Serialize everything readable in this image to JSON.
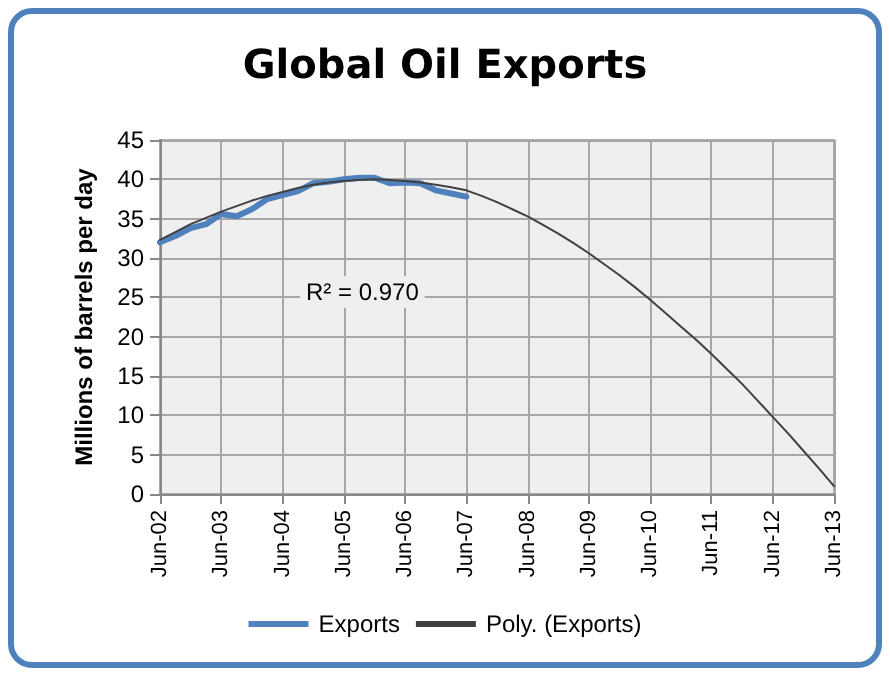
{
  "chart_data": {
    "type": "line",
    "title": "Global Oil Exports",
    "ylabel": "Millions of barrels per day",
    "categories": [
      "Jun-02",
      null,
      null,
      null,
      "Jun-03",
      null,
      null,
      null,
      "Jun-04",
      null,
      null,
      null,
      "Jun-05",
      null,
      null,
      null,
      "Jun-06",
      null,
      null,
      null,
      "Jun-07",
      null,
      null,
      null,
      "Jun-08",
      null,
      null,
      null,
      "Jun-09",
      null,
      null,
      null,
      "Jun-10",
      null,
      null,
      null,
      "Jun-11",
      null,
      null,
      null,
      "Jun-12",
      null,
      null,
      null,
      "Jun-13"
    ],
    "ylim": [
      0,
      45
    ],
    "yticks": [
      0,
      5,
      10,
      15,
      20,
      25,
      30,
      35,
      40,
      45
    ],
    "series": [
      {
        "name": "Exports",
        "color": "#4f81bd",
        "values": [
          32,
          32.8,
          33.8,
          34.3,
          35.6,
          35.3,
          36.2,
          37.5,
          38.0,
          38.5,
          39.5,
          39.7,
          40.0,
          40.2,
          40.2,
          39.5,
          39.6,
          39.5,
          38.6,
          38.2,
          37.8,
          null,
          null,
          null,
          null,
          null,
          null,
          null,
          null,
          null,
          null,
          null,
          null,
          null,
          null,
          null,
          null,
          null,
          null,
          null,
          null,
          null,
          null,
          null,
          null
        ]
      },
      {
        "name": "Poly. (Exports)",
        "color": "#404040",
        "values": [
          32.3,
          33.3,
          34.3,
          35.1,
          35.9,
          36.6,
          37.3,
          37.9,
          38.4,
          38.9,
          39.3,
          39.6,
          39.8,
          39.9,
          40.0,
          39.9,
          39.8,
          39.6,
          39.3,
          39.0,
          38.6,
          37.9,
          37.1,
          36.2,
          35.3,
          34.2,
          33.1,
          31.9,
          30.6,
          29.2,
          27.8,
          26.3,
          24.7,
          23.0,
          21.3,
          19.6,
          17.8,
          15.9,
          14.0,
          11.9,
          9.8,
          7.7,
          5.5,
          3.3,
          1.0
        ]
      }
    ],
    "annotations": [
      "R² = 0.970"
    ],
    "grid": true,
    "legend": "bottom",
    "marker": "none",
    "line_style": "solid"
  }
}
